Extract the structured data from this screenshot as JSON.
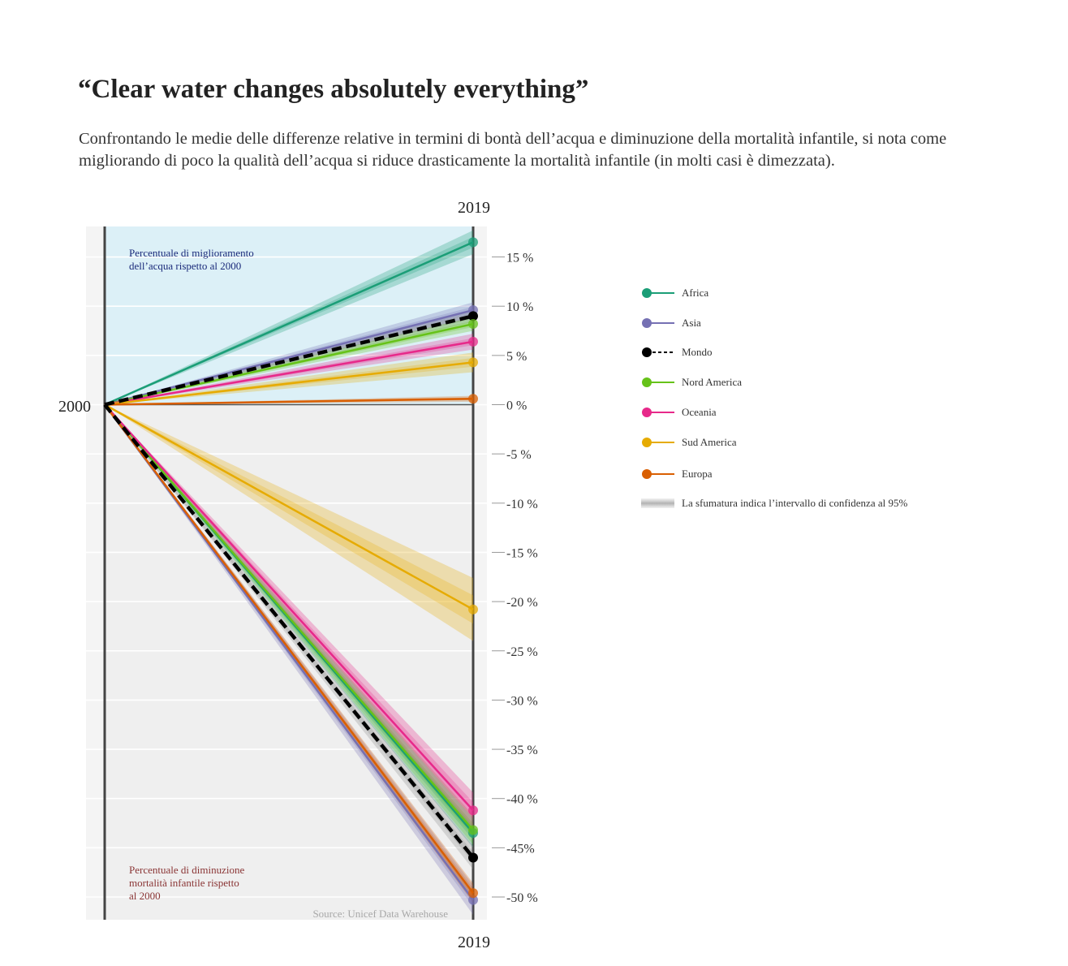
{
  "header": {
    "title": "“Clear water changes absolutely everything”",
    "subtitle": "Confrontando le medie delle differenze relative in termini di bontà dell’acqua e diminuzione della mortalità infantile, si nota come migliorando di poco la qualità dell’acqua si riduce drasticamente la mortalità infantile (in molti casi è dimezzata)."
  },
  "chart_data": {
    "type": "line",
    "x": [
      "2000",
      "2019"
    ],
    "x_label_start": "2000",
    "x_label_end_top": "2019",
    "x_label_end_bottom": "2019",
    "ylim": [
      -52,
      18
    ],
    "y_ticks": [
      {
        "value": 15,
        "label": "15 %"
      },
      {
        "value": 10,
        "label": "10 %"
      },
      {
        "value": 5,
        "label": "5 %"
      },
      {
        "value": 0,
        "label": "0 %"
      },
      {
        "value": -5,
        "label": "-5 %"
      },
      {
        "value": -10,
        "label": "-10 %"
      },
      {
        "value": -15,
        "label": "-15 %"
      },
      {
        "value": -20,
        "label": "-20 %"
      },
      {
        "value": -25,
        "label": "-25 %"
      },
      {
        "value": -30,
        "label": "-30 %"
      },
      {
        "value": -35,
        "label": "-35 %"
      },
      {
        "value": -40,
        "label": "-40 %"
      },
      {
        "value": -45,
        "label": "-45%"
      },
      {
        "value": -50,
        "label": "-50 %"
      }
    ],
    "grid": true,
    "legend_position": "right",
    "region_labels": {
      "water": "Percentuale di miglioramento dell’acqua rispetto al 2000",
      "mortality": "Percentuale di diminuzione mortalità infantile rispetto al 2000"
    },
    "source": "Source: Unicef Data Warehouse",
    "confidence_note": "La sfumatura indica l’intervallo di confidenza al 95%",
    "series": [
      {
        "name": "Africa",
        "color": "#1b9e77",
        "water": 16.5,
        "mortality": -43.5,
        "ci_water": 1.2,
        "ci_mortality": 1.5
      },
      {
        "name": "Asia",
        "color": "#7570b3",
        "water": 9.6,
        "mortality": -50.3,
        "ci_water": 0.8,
        "ci_mortality": 1.5
      },
      {
        "name": "Mondo",
        "color": "#000000",
        "water": 9.0,
        "mortality": -46.0,
        "ci_water": 0.6,
        "ci_mortality": 1.2,
        "dashed": true
      },
      {
        "name": "Nord America",
        "color": "#66c219",
        "water": 8.2,
        "mortality": -43.2,
        "ci_water": 0.7,
        "ci_mortality": 1.5
      },
      {
        "name": "Oceania",
        "color": "#e7298a",
        "water": 6.4,
        "mortality": -41.2,
        "ci_water": 0.8,
        "ci_mortality": 1.8
      },
      {
        "name": "Sud America",
        "color": "#e6ab02",
        "water": 4.3,
        "mortality": -20.8,
        "ci_water": 1.0,
        "ci_mortality": 3.2
      },
      {
        "name": "Europa",
        "color": "#d95f02",
        "water": 0.6,
        "mortality": -49.6,
        "ci_water": 0.3,
        "ci_mortality": 1.0
      }
    ]
  },
  "colors": {
    "water_region": "#dcf0f7",
    "mortality_region": "#efefef",
    "panel": "#f4f4f4",
    "water_label": "#1a2a7a",
    "mortality_label": "#8a3535",
    "source": "#a8a8a8"
  }
}
